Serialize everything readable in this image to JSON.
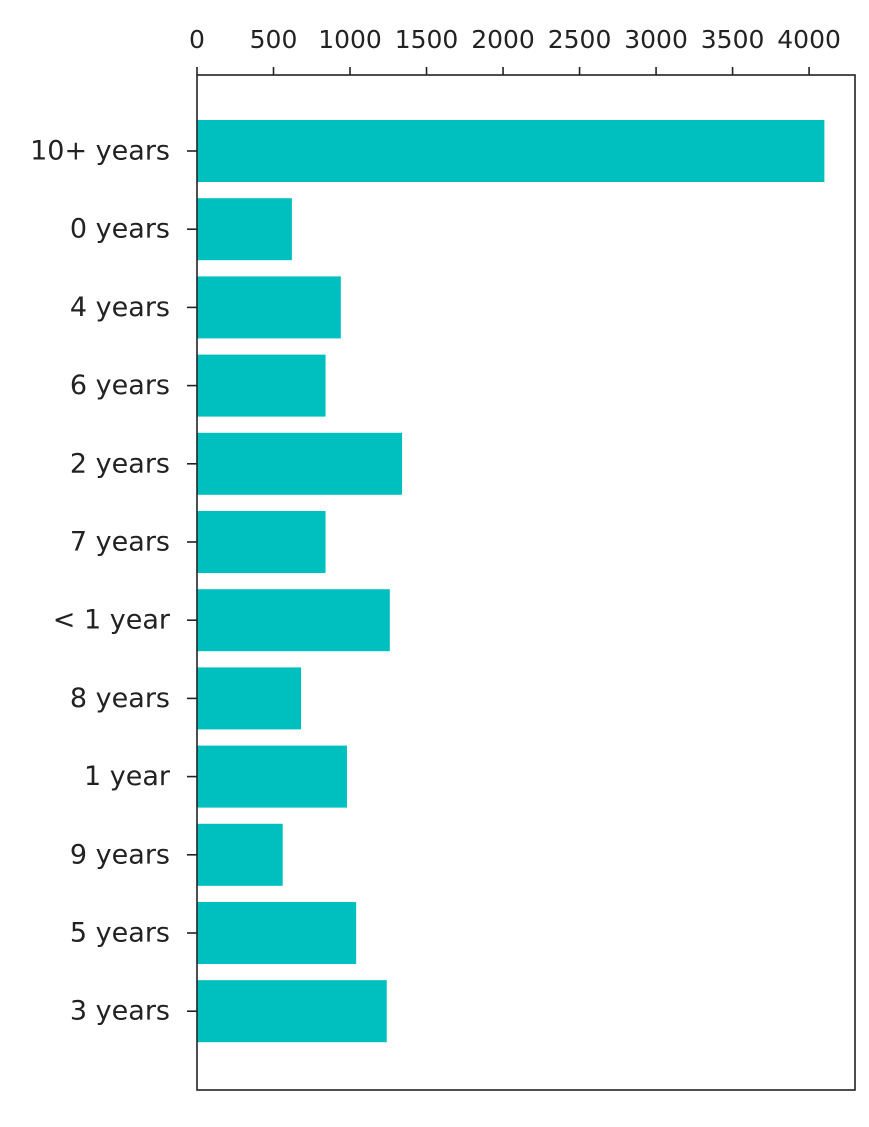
{
  "chart_data": {
    "type": "bar",
    "orientation": "horizontal",
    "categories": [
      "10+ years",
      "0 years",
      "4 years",
      "6 years",
      "2 years",
      "7 years",
      "< 1 year",
      "8 years",
      "1 year",
      "9 years",
      "5 years",
      "3 years"
    ],
    "values": [
      4100,
      620,
      940,
      840,
      1340,
      840,
      1260,
      680,
      980,
      560,
      1040,
      1240
    ],
    "x_ticks": [
      0,
      500,
      1000,
      1500,
      2000,
      2500,
      3000,
      3500,
      4000
    ],
    "xlim": [
      0,
      4300
    ],
    "x_tick_position": "top",
    "title": "",
    "xlabel": "",
    "ylabel": "",
    "grid": false,
    "bar_color": "#00BFBF"
  }
}
